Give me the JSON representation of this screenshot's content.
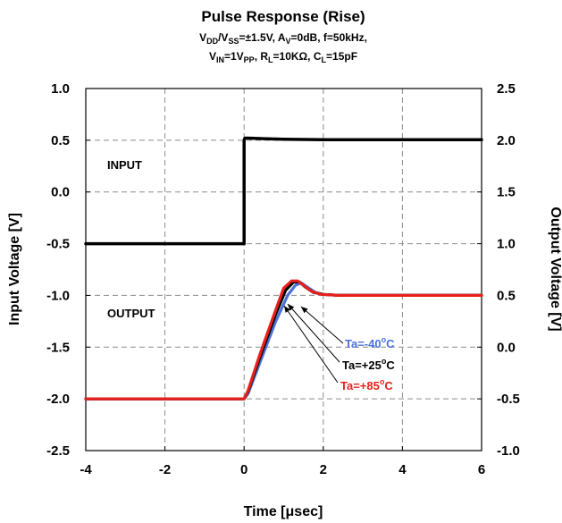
{
  "chart_data": {
    "type": "line",
    "title": "Pulse Response (Rise)",
    "subtitle_line1": [
      {
        "t": "V"
      },
      {
        "t": "DD",
        "sub": true
      },
      {
        "t": "/V"
      },
      {
        "t": "SS",
        "sub": true
      },
      {
        "t": "=±1.5V, A"
      },
      {
        "t": "V",
        "sub": true
      },
      {
        "t": "=0dB, f=50kHz,"
      }
    ],
    "subtitle_line2": [
      {
        "t": "V"
      },
      {
        "t": "IN",
        "sub": true
      },
      {
        "t": "=1V"
      },
      {
        "t": "PP",
        "sub": true
      },
      {
        "t": ", R"
      },
      {
        "t": "L",
        "sub": true
      },
      {
        "t": "=10KΩ, C"
      },
      {
        "t": "L",
        "sub": true
      },
      {
        "t": "=15pF"
      }
    ],
    "xlabel": "Time [μsec]",
    "ylabel_left": "Input Voltage [V]",
    "ylabel_right": "Output Voltage [V]",
    "xlim": [
      -4,
      6
    ],
    "ylim_left": [
      -2.5,
      1.0
    ],
    "ylim_right": [
      -1.0,
      2.5
    ],
    "x_ticks": [
      "-4",
      "-2",
      "0",
      "2",
      "4",
      "6"
    ],
    "y_ticks_left": [
      "1.0",
      "0.5",
      "0.0",
      "-0.5",
      "-1.0",
      "-1.5",
      "-2.0",
      "-2.5"
    ],
    "y_ticks_right": [
      "2.5",
      "2.0",
      "1.5",
      "1.0",
      "0.5",
      "0.0",
      "-0.5",
      "-1.0"
    ],
    "grid": true,
    "series": [
      {
        "name": "INPUT",
        "axis": "left",
        "color": "#000000",
        "x": [
          -4,
          0,
          0,
          0.02,
          0.1,
          0.5,
          1,
          2,
          4,
          6
        ],
        "y": [
          -0.5,
          -0.5,
          0.5,
          0.52,
          0.52,
          0.515,
          0.51,
          0.505,
          0.505,
          0.505
        ]
      },
      {
        "name": "Ta=-40°C",
        "axis": "right",
        "color": "#4a72d8",
        "x": [
          -4,
          0,
          0.1,
          0.4,
          0.8,
          1.1,
          1.3,
          1.45,
          1.6,
          1.8,
          2.0,
          2.4,
          3,
          4,
          6
        ],
        "y": [
          -0.5,
          -0.5,
          -0.45,
          -0.15,
          0.25,
          0.5,
          0.6,
          0.62,
          0.58,
          0.53,
          0.51,
          0.5,
          0.5,
          0.5,
          0.5
        ]
      },
      {
        "name": "Ta=+25°C",
        "axis": "right",
        "color": "#000000",
        "x": [
          -4,
          0,
          0.1,
          0.4,
          0.8,
          1.05,
          1.25,
          1.4,
          1.55,
          1.75,
          2.0,
          2.4,
          3,
          4,
          6
        ],
        "y": [
          -0.5,
          -0.5,
          -0.43,
          -0.1,
          0.32,
          0.55,
          0.63,
          0.63,
          0.58,
          0.53,
          0.51,
          0.5,
          0.5,
          0.5,
          0.5
        ]
      },
      {
        "name": "Ta=+85°C",
        "axis": "right",
        "color": "#e8201c",
        "x": [
          -4,
          0,
          0.1,
          0.4,
          0.8,
          1.0,
          1.2,
          1.35,
          1.5,
          1.7,
          1.95,
          2.4,
          3,
          4,
          6
        ],
        "y": [
          -0.5,
          -0.5,
          -0.42,
          -0.07,
          0.36,
          0.57,
          0.64,
          0.64,
          0.6,
          0.54,
          0.51,
          0.5,
          0.5,
          0.5,
          0.5
        ]
      }
    ],
    "annotations": {
      "input_label": "INPUT",
      "output_label": "OUTPUT",
      "labels": [
        {
          "pre": "Ta=-40",
          "sup": "o",
          "post": "C",
          "color": "#4a72d8"
        },
        {
          "pre": "Ta=+25",
          "sup": "o",
          "post": "C",
          "color": "#000000"
        },
        {
          "pre": "Ta=+85",
          "sup": "o",
          "post": "C",
          "color": "#e8201c"
        }
      ]
    }
  }
}
